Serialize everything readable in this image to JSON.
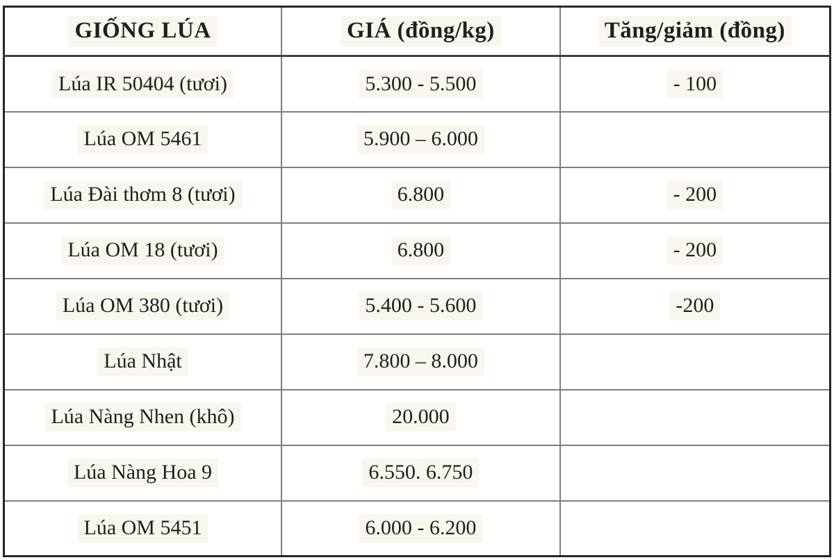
{
  "table": {
    "title": "rice-variety-price-table",
    "headers": {
      "variety": "GIỐNG LÚA",
      "price": "GIÁ (đồng/kg)",
      "change": "Tăng/giảm (đồng)"
    },
    "rows": [
      {
        "variety": "Lúa IR 50404 (tươi)",
        "price": "5.300 - 5.500",
        "change": "- 100"
      },
      {
        "variety": "Lúa OM 5461",
        "price": "5.900 – 6.000",
        "change": ""
      },
      {
        "variety": "Lúa Đài thơm 8 (tươi)",
        "price": "6.800",
        "change": "- 200"
      },
      {
        "variety": "Lúa OM 18 (tươi)",
        "price": "6.800",
        "change": "- 200"
      },
      {
        "variety": "Lúa OM 380 (tươi)",
        "price": "5.400 - 5.600",
        "change": "-200"
      },
      {
        "variety": "Lúa Nhật",
        "price": "7.800 – 8.000",
        "change": ""
      },
      {
        "variety": "Lúa Nàng Nhen (khô)",
        "price": "20.000",
        "change": ""
      },
      {
        "variety": "Lúa Nàng Hoa 9",
        "price": "6.550. 6.750",
        "change": ""
      },
      {
        "variety": "Lúa OM 5451",
        "price": "6.000 - 6.200",
        "change": ""
      }
    ],
    "colors": {
      "outer_border": "#262626",
      "inner_grid": "#7d7d7d",
      "header_underline": "#3f3f3f",
      "text": "#1f1f1f",
      "text_highlight": "#f8f6ee",
      "background": "#ffffff"
    }
  }
}
